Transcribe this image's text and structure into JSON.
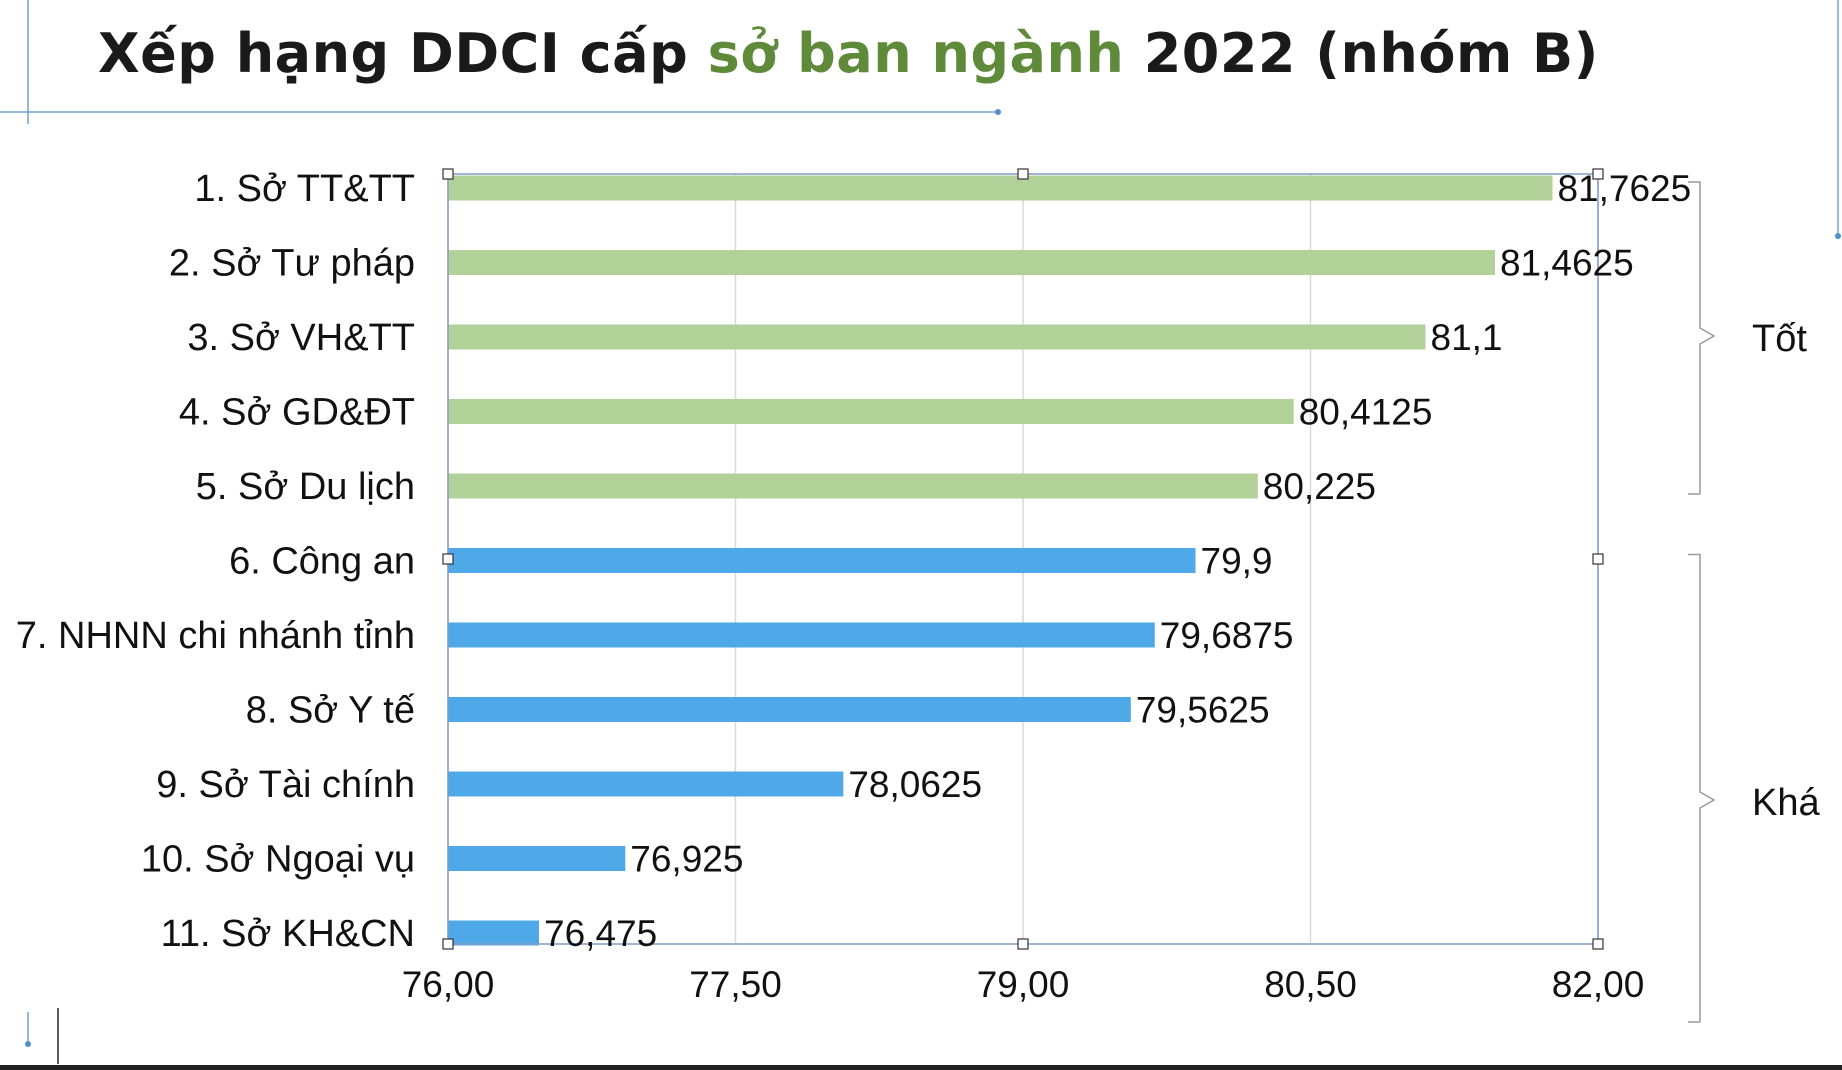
{
  "title": {
    "part1": "Xếp hạng DDCI cấp ",
    "highlight": "sở ban ngành",
    "part2": " 2022 (nhóm B)"
  },
  "colors": {
    "green": "#b2d198",
    "blue": "#4fa9e8",
    "highlight": "#5e8a3a",
    "grid": "#d9d9d9",
    "frame": "#7f9cc4"
  },
  "chart_data": {
    "type": "bar",
    "orientation": "horizontal",
    "categories": [
      "1. Sở TT&TT",
      "2. Sở Tư pháp",
      "3. Sở VH&TT",
      "4. Sở GD&ĐT",
      "5. Sở Du lịch",
      "6. Công an",
      "7. NHNN chi nhánh tỉnh",
      "8. Sở Y tế",
      "9. Sở Tài chính",
      "10. Sở Ngoại vụ",
      "11. Sở KH&CN"
    ],
    "values": [
      81.7625,
      81.4625,
      81.1,
      80.4125,
      80.225,
      79.9,
      79.6875,
      79.5625,
      78.0625,
      76.925,
      76.475
    ],
    "value_labels": [
      "81,7625",
      "81,4625",
      "81,1",
      "80,4125",
      "80,225",
      "79,9",
      "79,6875",
      "79,5625",
      "78,0625",
      "76,925",
      "76,475"
    ],
    "groups": [
      {
        "name": "Tốt",
        "from": 0,
        "to": 4,
        "color": "green"
      },
      {
        "name": "Khá",
        "from": 5,
        "to": 10,
        "color": "blue"
      }
    ],
    "xlim": [
      76,
      82
    ],
    "xticks": [
      76,
      77.5,
      79,
      80.5,
      82
    ],
    "xtick_labels": [
      "76,00",
      "77,50",
      "79,00",
      "80,50",
      "82,00"
    ],
    "grid": true,
    "xlabel": "",
    "ylabel": ""
  }
}
